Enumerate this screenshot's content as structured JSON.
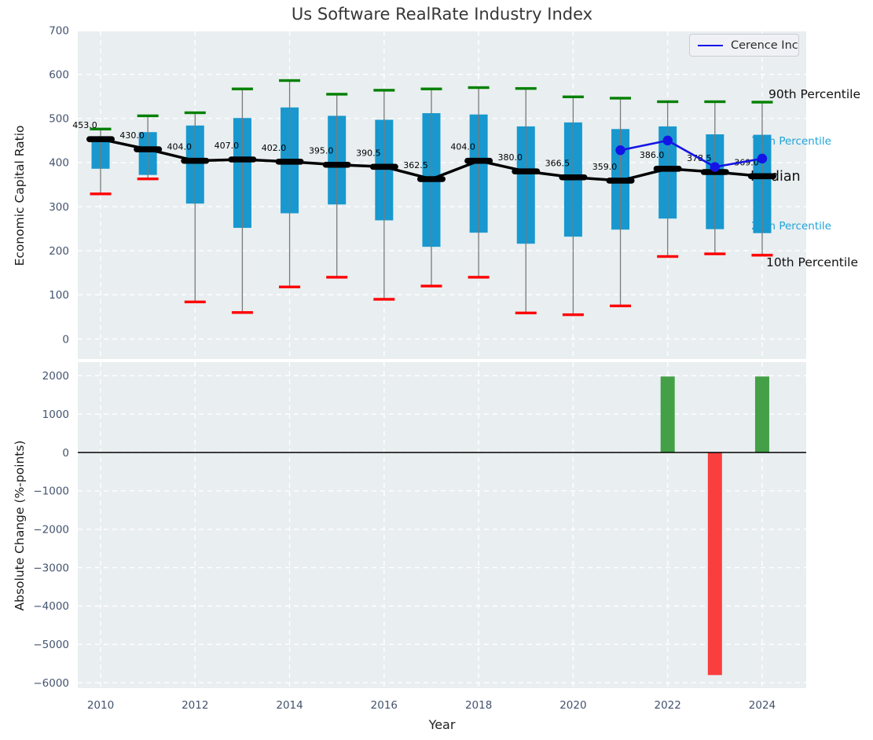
{
  "title": "Us Software RealRate Industry Index",
  "legend": {
    "label": "Cerence Inc",
    "position": "upper right"
  },
  "colors": {
    "box_fill": "#1898ce",
    "p90_cap": "#008000",
    "p10_cap": "#ff0000",
    "whisker": "#7a7a7a",
    "median_line": "#000000",
    "company_line": "#1414e6",
    "bar_positive": "#43a047",
    "bar_negative": "#fa3e3e",
    "axes_bg": "#e9eef0",
    "grid": "#ffffff",
    "tick_label": "#44536e",
    "annotation_teal": "#1fa3d8",
    "annotation_black": "#111111"
  },
  "chart_data": [
    {
      "type": "boxplot",
      "title": "Us Software RealRate Industry Index",
      "xlabel": "Year",
      "ylabel": "Economic Capital Ratio",
      "grid": true,
      "ylim": [
        -40,
        705
      ],
      "yticks": [
        0,
        100,
        200,
        300,
        400,
        500,
        600,
        700
      ],
      "ytick_labels": [
        "0",
        "100",
        "200",
        "300",
        "400",
        "500",
        "600",
        "700"
      ],
      "x": [
        2010,
        2011,
        2012,
        2013,
        2014,
        2015,
        2016,
        2017,
        2018,
        2019,
        2020,
        2021,
        2022,
        2023,
        2024
      ],
      "xticks": [
        2010,
        2012,
        2014,
        2016,
        2018,
        2020,
        2022,
        2024
      ],
      "xtick_labels": [
        "2010",
        "2012",
        "2014",
        "2016",
        "2018",
        "2020",
        "2022",
        "2024"
      ],
      "percentiles": {
        "p90": [
          476,
          506,
          513,
          567,
          586,
          555,
          564,
          567,
          570,
          568,
          549,
          546,
          538,
          538,
          537
        ],
        "p75": [
          459,
          469,
          484,
          501,
          525,
          506,
          497,
          512,
          509,
          482,
          491,
          476,
          482,
          464,
          463
        ],
        "median": [
          453.0,
          430.0,
          404.0,
          407.0,
          402.0,
          395.0,
          390.5,
          362.5,
          404.0,
          380.0,
          366.5,
          359.0,
          386.0,
          378.5,
          369.0
        ],
        "p25": [
          386,
          372,
          307,
          252,
          285,
          305,
          269,
          209,
          241,
          216,
          232,
          248,
          273,
          249,
          240
        ],
        "p10": [
          329,
          363,
          84,
          60,
          118,
          140,
          90,
          120,
          140,
          59,
          55,
          75,
          187,
          193,
          190
        ]
      },
      "median_labels": [
        "453.0",
        "430.0",
        "404.0",
        "407.0",
        "402.0",
        "395.0",
        "390.5",
        "362.5",
        "404.0",
        "380.0",
        "366.5",
        "359.0",
        "386.0",
        "378.5",
        "369.0"
      ],
      "series": [
        {
          "name": "Cerence Inc",
          "x": [
            2021,
            2022,
            2023,
            2024
          ],
          "values": [
            428,
            450,
            390,
            409
          ]
        }
      ],
      "annotations": [
        {
          "text": "90th Percentile",
          "color": "black"
        },
        {
          "text": "75th Percentile",
          "color": "teal"
        },
        {
          "text": "Median",
          "color": "black"
        },
        {
          "text": "25th Percentile",
          "color": "teal"
        },
        {
          "text": "10th Percentile",
          "color": "black"
        }
      ]
    },
    {
      "type": "bar",
      "xlabel": "Year",
      "ylabel": "Absolute Change (%-points)",
      "grid": true,
      "ylim": [
        -6310,
        2360
      ],
      "yticks": [
        2000,
        1000,
        0,
        -1000,
        -2000,
        -3000,
        -4000,
        -5000,
        -6000
      ],
      "ytick_labels": [
        "2000",
        "1000",
        "0",
        "−1000",
        "−2000",
        "−3000",
        "−4000",
        "−5000",
        "−6000"
      ],
      "x": [
        2022,
        2023,
        2024
      ],
      "values": [
        1980,
        -5800,
        1980
      ],
      "bar_colors": [
        "positive",
        "negative",
        "positive"
      ],
      "zero_line": true
    }
  ]
}
